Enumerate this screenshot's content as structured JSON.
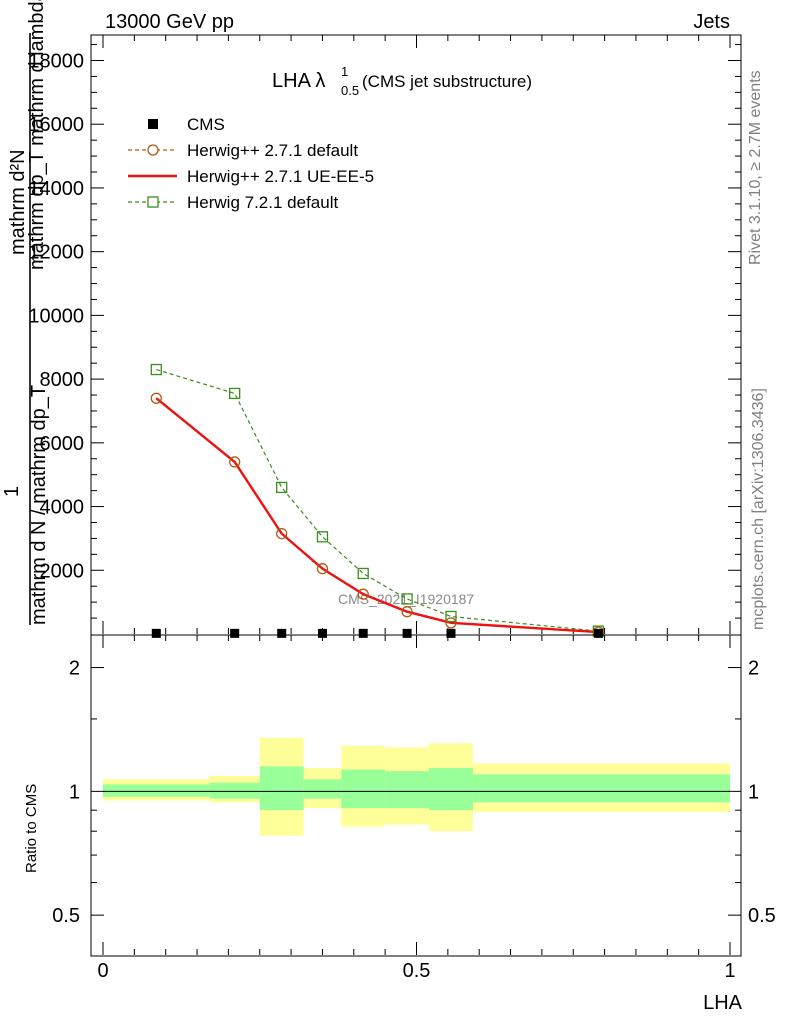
{
  "header": {
    "left": "13000 GeV pp",
    "right": "Jets"
  },
  "side_labels": {
    "rivet": "Rivet 3.1.10, ≥ 2.7M events",
    "mcplots": "mcplots.cern.ch [arXiv:1306.3436]"
  },
  "watermark": "CMS_2021_I1920187",
  "ylabel_main": {
    "numerator": "mathrm d²N",
    "numerator_2": "mathrm dp_T mathrm d lambda",
    "mid": "1",
    "denominator": "mathrm d N / mathrm dp_T"
  },
  "plot_title": {
    "main": "LHA λ",
    "sup": "1",
    "sub": "0.5",
    "suffix": " (CMS jet substructure)"
  },
  "ylabel_ratio": "Ratio to CMS",
  "xlabel": "LHA",
  "chart_data": [
    {
      "type": "line",
      "title": "LHA λ¹₀.₅ (CMS jet substructure)",
      "xlabel": "LHA",
      "ylabel": "",
      "xlim": [
        0,
        1
      ],
      "ylim": [
        0,
        18800
      ],
      "y_ticks": [
        2000,
        4000,
        6000,
        8000,
        10000,
        12000,
        14000,
        16000,
        18000
      ],
      "x_ticks": [
        "0",
        "0.5",
        "1"
      ],
      "legend_position": "top-left",
      "series": [
        {
          "name": "CMS",
          "marker": "filled-square",
          "color": "#000000",
          "x": [
            0.085,
            0.21,
            0.285,
            0.35,
            0.415,
            0.485,
            0.555,
            0.79
          ],
          "y": [
            20,
            20,
            20,
            20,
            20,
            20,
            20,
            20
          ]
        },
        {
          "name": "Herwig++ 2.7.1 default",
          "marker": "open-circle",
          "line": "dashed",
          "color": "#b05a10",
          "x": [
            0.085,
            0.21,
            0.285,
            0.35,
            0.415,
            0.485,
            0.555,
            0.79
          ],
          "y": [
            7400,
            5400,
            3150,
            2050,
            1250,
            700,
            350,
            60
          ]
        },
        {
          "name": "Herwig++ 2.7.1 UE-EE-5",
          "marker": "none",
          "line": "solid",
          "color": "#ee1111",
          "x": [
            0.085,
            0.21,
            0.285,
            0.35,
            0.415,
            0.485,
            0.555,
            0.79
          ],
          "y": [
            7400,
            5400,
            3150,
            2050,
            1250,
            700,
            350,
            60
          ]
        },
        {
          "name": "Herwig 7.2.1 default",
          "marker": "open-square",
          "line": "dashed",
          "color": "#3c8c1e",
          "x": [
            0.085,
            0.21,
            0.285,
            0.35,
            0.415,
            0.485,
            0.555,
            0.79
          ],
          "y": [
            8300,
            7550,
            4600,
            3050,
            1900,
            1100,
            550,
            90
          ]
        }
      ]
    },
    {
      "type": "area",
      "ylabel": "Ratio to CMS",
      "xlabel": "LHA",
      "xlim": [
        0,
        1
      ],
      "ylim": [
        0.4,
        2.4
      ],
      "y_scale": "log",
      "y_ticks": [
        "0.5",
        "1",
        "2"
      ],
      "x_ticks": [
        "0",
        "0.5",
        "1"
      ],
      "reference_line": 1,
      "bands": {
        "x_edges": [
          0,
          0.17,
          0.25,
          0.32,
          0.38,
          0.45,
          0.52,
          0.59,
          1.0
        ],
        "yellow_low": [
          0.95,
          0.94,
          0.78,
          0.91,
          0.82,
          0.83,
          0.8,
          0.89
        ],
        "yellow_high": [
          1.07,
          1.09,
          1.35,
          1.14,
          1.29,
          1.28,
          1.31,
          1.17
        ],
        "green_low": [
          0.97,
          0.96,
          0.9,
          0.96,
          0.91,
          0.91,
          0.9,
          0.94
        ],
        "green_high": [
          1.04,
          1.05,
          1.15,
          1.07,
          1.13,
          1.12,
          1.14,
          1.1
        ],
        "yellow_color": "#ffff99",
        "green_color": "#99ff99"
      }
    }
  ]
}
